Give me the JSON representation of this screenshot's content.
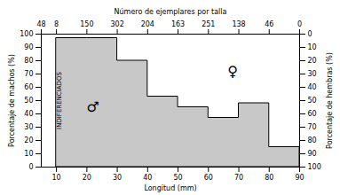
{
  "chart_data": {
    "type": "step",
    "x2label": "Número de ejemplares por talla",
    "xlabel": "Longitud (mm)",
    "ylabel": "Porcentaje de machos (%)",
    "y2label": "Porcentaje de hembras (%)",
    "x": [
      10,
      20,
      30,
      40,
      50,
      60,
      70,
      80,
      90
    ],
    "values": [
      97,
      97,
      80,
      53,
      45,
      37,
      48,
      15,
      15
    ],
    "color": "#c8c8c8",
    "xlim": [
      5,
      90
    ],
    "xticks": [
      10,
      20,
      30,
      40,
      50,
      60,
      70,
      80,
      90
    ],
    "x2ticks": [
      {
        "value": 5,
        "label": "48"
      },
      {
        "value": 10,
        "label": "8"
      },
      {
        "value": 20,
        "label": "150"
      },
      {
        "value": 30,
        "label": "302"
      },
      {
        "value": 40,
        "label": "204"
      },
      {
        "value": 50,
        "label": "163"
      },
      {
        "value": 60,
        "label": "251"
      },
      {
        "value": 70,
        "label": "138"
      },
      {
        "value": 80,
        "label": "46"
      },
      {
        "value": 90,
        "label": "0"
      }
    ],
    "ylim": [
      0,
      100
    ],
    "yticks": [
      0,
      10,
      20,
      30,
      40,
      50,
      60,
      70,
      80,
      90,
      100
    ],
    "y2lim": [
      100,
      0
    ],
    "y2ticks": [
      0,
      10,
      20,
      30,
      40,
      50,
      60,
      70,
      80,
      90,
      100
    ],
    "annotations": [
      {
        "text": "INDIFERENCIADOS",
        "x": 11,
        "y": 50
      },
      {
        "text": "♂",
        "x": 22,
        "y": 45
      },
      {
        "text": "♀",
        "x": 68,
        "y": 72
      }
    ]
  }
}
